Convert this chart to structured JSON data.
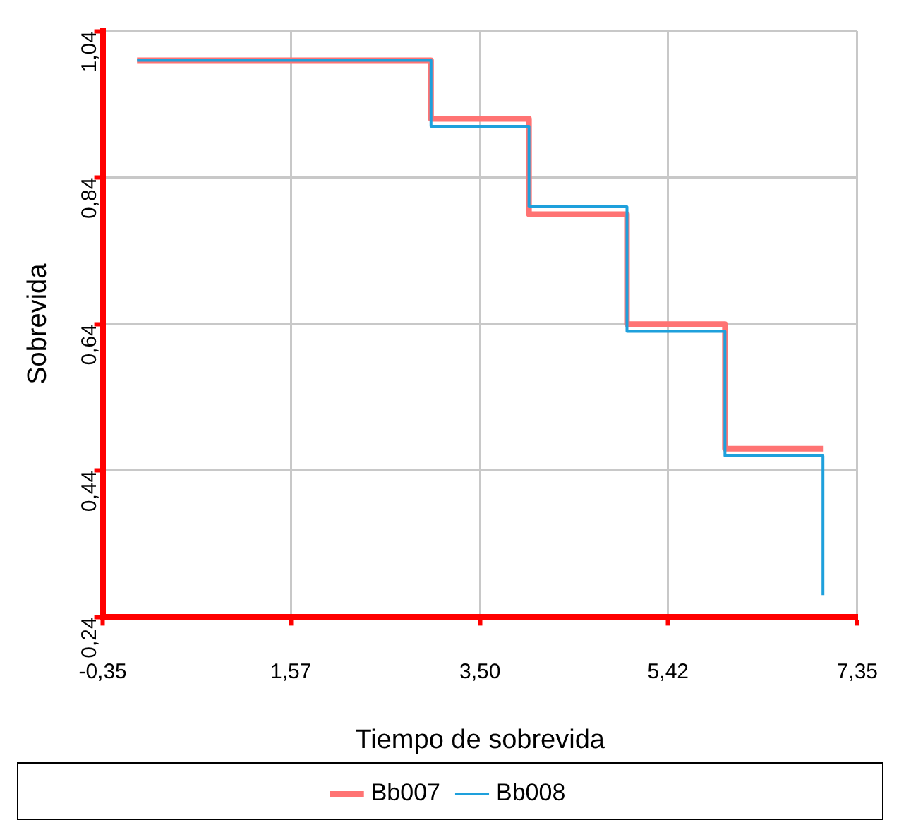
{
  "chart_data": {
    "type": "step",
    "xlabel": "Tiempo de sobrevida",
    "ylabel": "Sobrevida",
    "xlim": [
      -0.35,
      7.35
    ],
    "xticks": [
      {
        "value": -0.35,
        "label": "-0,35"
      },
      {
        "value": 1.57,
        "label": "1,57"
      },
      {
        "value": 3.5,
        "label": "3,50"
      },
      {
        "value": 5.42,
        "label": "5,42"
      },
      {
        "value": 7.35,
        "label": "7,35"
      }
    ],
    "ylim": [
      0.24,
      1.04
    ],
    "yticks": [
      {
        "value": 0.24,
        "label": "0,24"
      },
      {
        "value": 0.44,
        "label": "0,44"
      },
      {
        "value": 0.64,
        "label": "0,64"
      },
      {
        "value": 0.84,
        "label": "0,84"
      },
      {
        "value": 1.04,
        "label": "1,04"
      }
    ],
    "series": [
      {
        "name": "Bb007",
        "color": "#ff7373",
        "x": [
          0,
          3,
          4,
          5,
          6,
          7
        ],
        "values": [
          1.0,
          0.92,
          0.79,
          0.64,
          0.47,
          0.47
        ]
      },
      {
        "name": "Bb008",
        "color": "#1ea0dc",
        "x": [
          0,
          3,
          4,
          5,
          6,
          7,
          7
        ],
        "values": [
          1.0,
          0.91,
          0.8,
          0.63,
          0.46,
          0.46,
          0.27
        ]
      }
    ],
    "grid": true,
    "legend": "bottom",
    "line_style": "solid",
    "marker": "none"
  }
}
